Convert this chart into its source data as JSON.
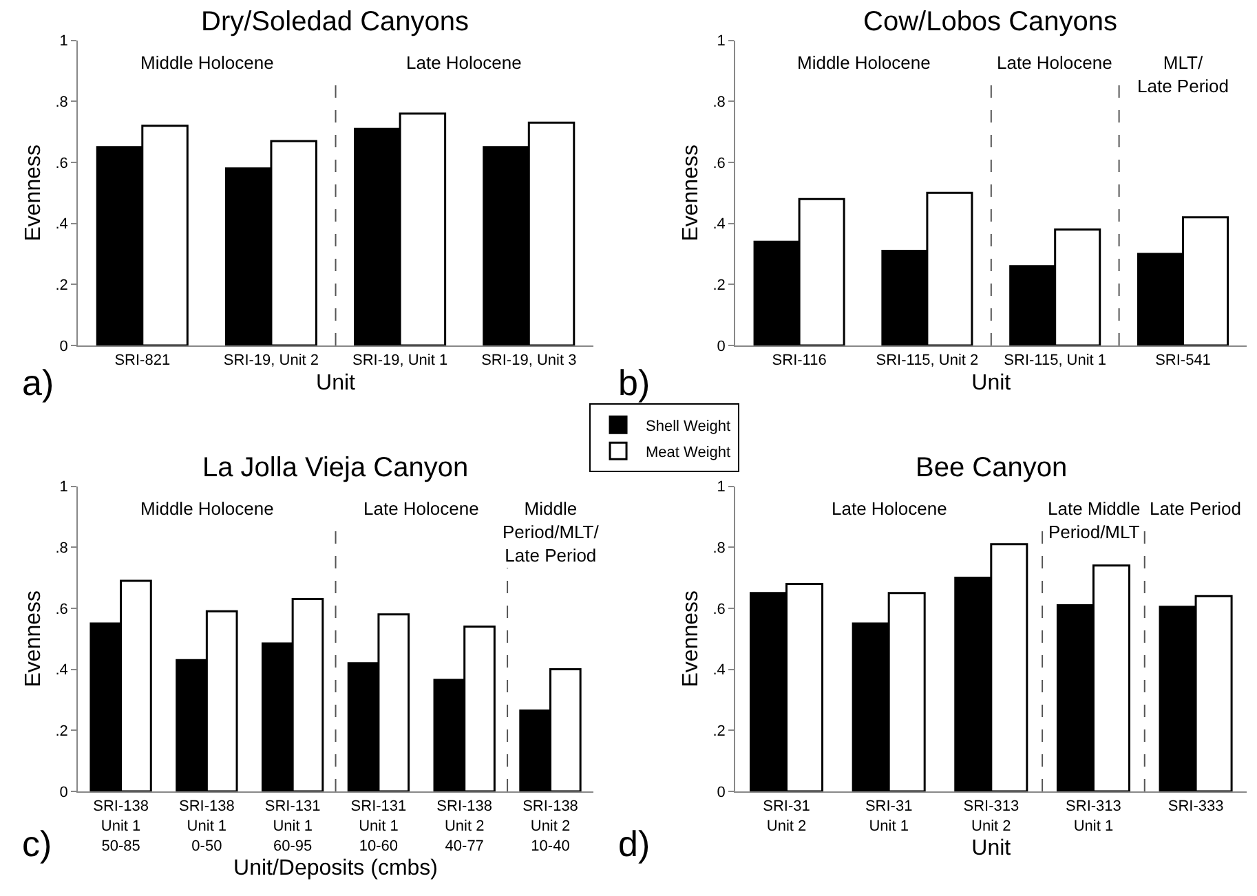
{
  "chart_data": [
    {
      "type": "bar",
      "title": "Dry/Soledad Canyons",
      "xlabel": "Unit",
      "ylabel": "Evenness",
      "categories": [
        "SRI-821",
        "SRI-19, Unit 2",
        "SRI-19, Unit 1",
        "SRI-19, Unit 3"
      ],
      "series": [
        {
          "name": "Shell Weight",
          "color": "#000000",
          "values": [
            0.65,
            0.58,
            0.71,
            0.65
          ]
        },
        {
          "name": "Meat Weight",
          "color": "#ffffff",
          "values": [
            0.72,
            0.67,
            0.76,
            0.73
          ]
        }
      ],
      "ylim": [
        0,
        1
      ],
      "yticks": [
        0,
        {
          "value": 0.2,
          "label": ".2"
        },
        {
          "value": 0.4,
          "label": ".4"
        },
        {
          "value": 0.6,
          "label": ".6"
        },
        {
          "value": 0.8,
          "label": ".8"
        },
        1
      ],
      "annotations": [
        "Middle Holocene",
        "Late Holocene",
        "a)"
      ],
      "legend": "bottom right"
    },
    {
      "type": "bar",
      "title": "Cow/Lobos Canyons",
      "xlabel": "Unit",
      "ylabel": "Evenness",
      "categories": [
        "SRI-116",
        "SRI-115, Unit 2",
        "SRI-115, Unit 1",
        "SRI-541"
      ],
      "series": [
        {
          "color": "#000000",
          "values": [
            0.34,
            0.31,
            0.26,
            0.3
          ]
        },
        {
          "color": "#ffffff",
          "values": [
            0.48,
            0.5,
            0.38,
            0.42
          ]
        }
      ],
      "ylim": [
        0,
        1
      ],
      "yticks": [
        0,
        {
          "value": 0.2,
          "label": ".2"
        },
        {
          "value": 0.4,
          "label": ".4"
        },
        {
          "value": 0.6,
          "label": ".6"
        },
        {
          "value": 0.8,
          "label": ".8"
        },
        1
      ],
      "annotations": [
        "Middle Holocene",
        "Late Holocene",
        "MLT/\nLate Period",
        "b)"
      ],
      "legend": "bottom left"
    },
    {
      "type": "bar",
      "title": "La Jolla Vieja Canyon",
      "xlabel": "Unit/Deposits (cmbs)",
      "ylabel": "Evenness",
      "categories": [
        "SRI-138\nUnit 1\n50-85",
        "SRI-138\nUnit 1\n0-50",
        "SRI-131\nUnit 1\n60-95",
        "SRI-131\nUnit 1\n10-60",
        "SRI-138\nUnit 2\n40-77",
        "SRI-138\nUnit 2\n10-40"
      ],
      "series": [
        {
          "color": "#000000",
          "values": [
            0.55,
            0.43,
            0.485,
            0.42,
            0.365,
            0.265
          ]
        },
        {
          "color": "#ffffff",
          "values": [
            0.69,
            0.59,
            0.63,
            0.58,
            0.54,
            0.4
          ]
        }
      ],
      "ylim": [
        0,
        1
      ],
      "yticks": [
        0,
        {
          "value": 0.2,
          "label": ".2"
        },
        {
          "value": 0.4,
          "label": ".4"
        },
        {
          "value": 0.6,
          "label": ".6"
        },
        {
          "value": 0.8,
          "label": ".8"
        },
        1
      ],
      "annotations": [
        "Middle Holocene",
        "Late Holocene",
        "Middle\nPeriod/MLT/\nLate Period",
        "c)"
      ],
      "legend": "top right"
    },
    {
      "type": "bar",
      "title": "Bee Canyon",
      "xlabel": "Unit",
      "ylabel": "Evenness",
      "categories": [
        "SRI-31\nUnit 2",
        "SRI-31\nUnit 1",
        "SRI-313\nUnit 2",
        "SRI-313\nUnit 1",
        "SRI-333"
      ],
      "series": [
        {
          "color": "#000000",
          "values": [
            0.65,
            0.55,
            0.7,
            0.61,
            0.605
          ]
        },
        {
          "color": "#ffffff",
          "values": [
            0.68,
            0.65,
            0.81,
            0.74,
            0.64
          ]
        }
      ],
      "ylim": [
        0,
        1
      ],
      "yticks": [
        0,
        {
          "value": 0.2,
          "label": ".2"
        },
        {
          "value": 0.4,
          "label": ".4"
        },
        {
          "value": 0.6,
          "label": ".6"
        },
        {
          "value": 0.8,
          "label": ".8"
        },
        1
      ],
      "annotations": [
        "Late Holocene",
        "Late Middle\nPeriod/MLT",
        "Late Period",
        "d)"
      ],
      "legend": "top left"
    }
  ]
}
